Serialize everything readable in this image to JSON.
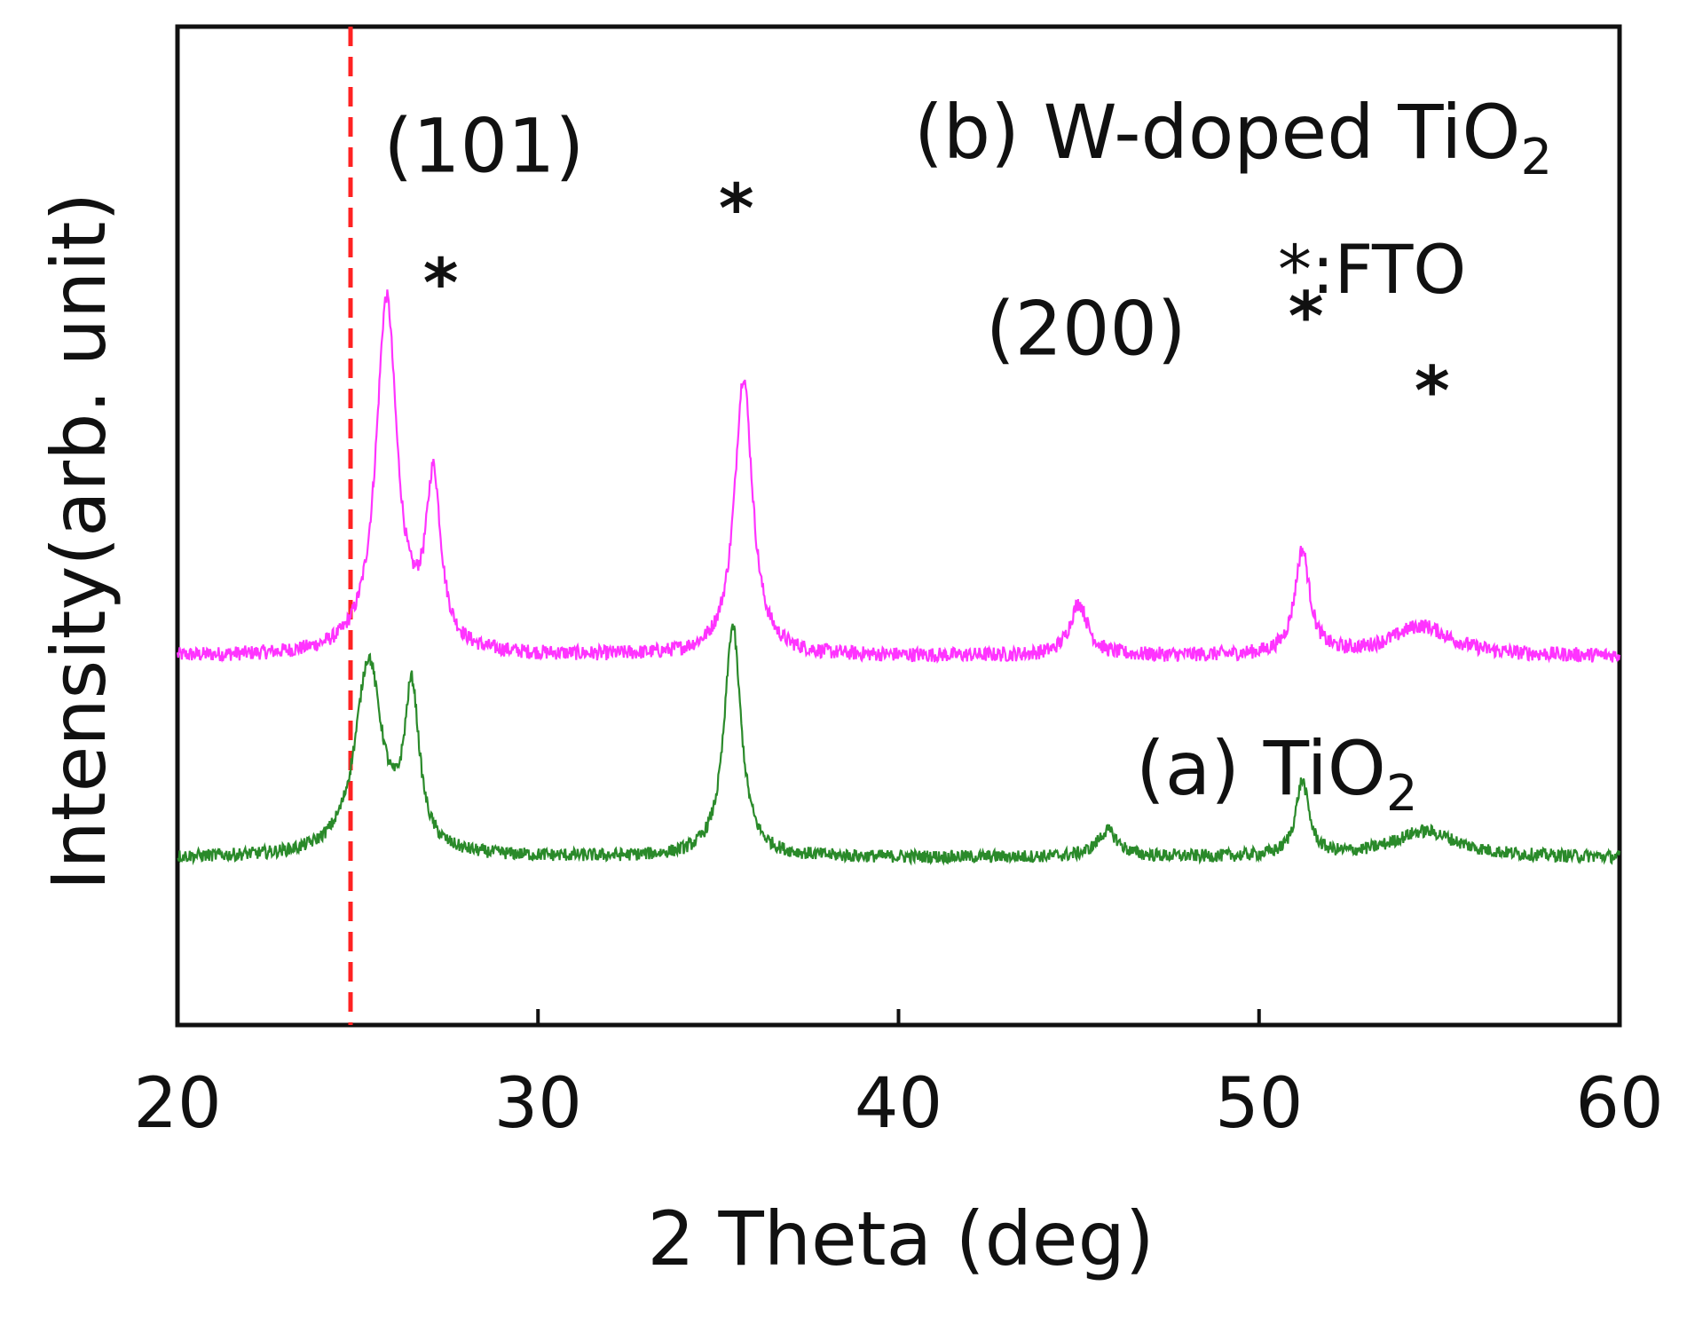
{
  "chart_data": {
    "type": "line",
    "xlabel": "2 Theta (deg)",
    "ylabel": "Intensity(arb. unit)",
    "xlim": [
      20,
      60
    ],
    "x_ticks": [
      20,
      30,
      40,
      50,
      60
    ],
    "x_tick_labels": [
      "20",
      "30",
      "40",
      "50",
      "60"
    ],
    "y_ticks_shown": false,
    "grid": false,
    "reference_line": {
      "x": 24.8,
      "style": "dashed",
      "color": "#ff2222"
    },
    "series": [
      {
        "name_prefix": "(b) W-doped TiO",
        "name_sub": "2",
        "color": "#ff33ff",
        "baseline": 0.62,
        "noise": 0.04,
        "peaks": [
          {
            "x": 25.8,
            "height": 0.95,
            "width": 0.35
          },
          {
            "x": 27.1,
            "height": 0.45,
            "width": 0.25
          },
          {
            "x": 35.7,
            "height": 0.75,
            "width": 0.3
          },
          {
            "x": 45.0,
            "height": 0.14,
            "width": 0.3
          },
          {
            "x": 51.2,
            "height": 0.28,
            "width": 0.25
          },
          {
            "x": 54.5,
            "height": 0.08,
            "width": 1.0
          }
        ]
      },
      {
        "name_prefix": "(a) TiO",
        "name_sub": "2",
        "color": "#2a8a2a",
        "baseline": 0.08,
        "noise": 0.035,
        "peaks": [
          {
            "x": 25.3,
            "height": 0.52,
            "width": 0.45
          },
          {
            "x": 26.5,
            "height": 0.42,
            "width": 0.25
          },
          {
            "x": 35.4,
            "height": 0.62,
            "width": 0.28
          },
          {
            "x": 45.8,
            "height": 0.07,
            "width": 0.35
          },
          {
            "x": 51.2,
            "height": 0.2,
            "width": 0.22
          },
          {
            "x": 54.6,
            "height": 0.07,
            "width": 1.1
          }
        ]
      }
    ],
    "peak_labels": [
      {
        "text": "(101)",
        "x": 28.5,
        "y": 1.92
      },
      {
        "text": "(200)",
        "x": 45.2,
        "y": 1.43
      }
    ],
    "fto_markers": [
      {
        "text": "*",
        "x": 27.3,
        "y": 1.56
      },
      {
        "text": "*",
        "x": 35.5,
        "y": 1.76
      },
      {
        "text": "*",
        "x": 51.3,
        "y": 1.47
      },
      {
        "text": "*",
        "x": 54.8,
        "y": 1.27
      }
    ],
    "legend_note": "*:FTO"
  }
}
